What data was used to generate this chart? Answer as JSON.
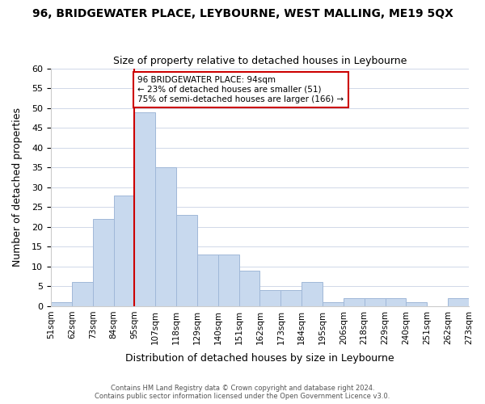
{
  "title": "96, BRIDGEWATER PLACE, LEYBOURNE, WEST MALLING, ME19 5QX",
  "subtitle": "Size of property relative to detached houses in Leybourne",
  "xlabel": "Distribution of detached houses by size in Leybourne",
  "ylabel": "Number of detached properties",
  "bin_labels": [
    "51sqm",
    "62sqm",
    "73sqm",
    "84sqm",
    "95sqm",
    "107sqm",
    "118sqm",
    "129sqm",
    "140sqm",
    "151sqm",
    "162sqm",
    "173sqm",
    "184sqm",
    "195sqm",
    "206sqm",
    "218sqm",
    "229sqm",
    "240sqm",
    "251sqm",
    "262sqm",
    "273sqm"
  ],
  "bar_heights": [
    1,
    6,
    22,
    28,
    49,
    35,
    23,
    13,
    13,
    9,
    4,
    4,
    6,
    1,
    2,
    2,
    2,
    1,
    0,
    2
  ],
  "bar_color": "#c8d9ee",
  "bar_edge_color": "#a0b8d8",
  "highlight_line_index": 4,
  "highlight_line_color": "#cc0000",
  "annotation_box_text": "96 BRIDGEWATER PLACE: 94sqm\n← 23% of detached houses are smaller (51)\n75% of semi-detached houses are larger (166) →",
  "annotation_box_edge_color": "#cc0000",
  "ylim": [
    0,
    60
  ],
  "yticks": [
    0,
    5,
    10,
    15,
    20,
    25,
    30,
    35,
    40,
    45,
    50,
    55,
    60
  ],
  "footer_line1": "Contains HM Land Registry data © Crown copyright and database right 2024.",
  "footer_line2": "Contains public sector information licensed under the Open Government Licence v3.0.",
  "background_color": "#ffffff",
  "grid_color": "#d0d8e8"
}
